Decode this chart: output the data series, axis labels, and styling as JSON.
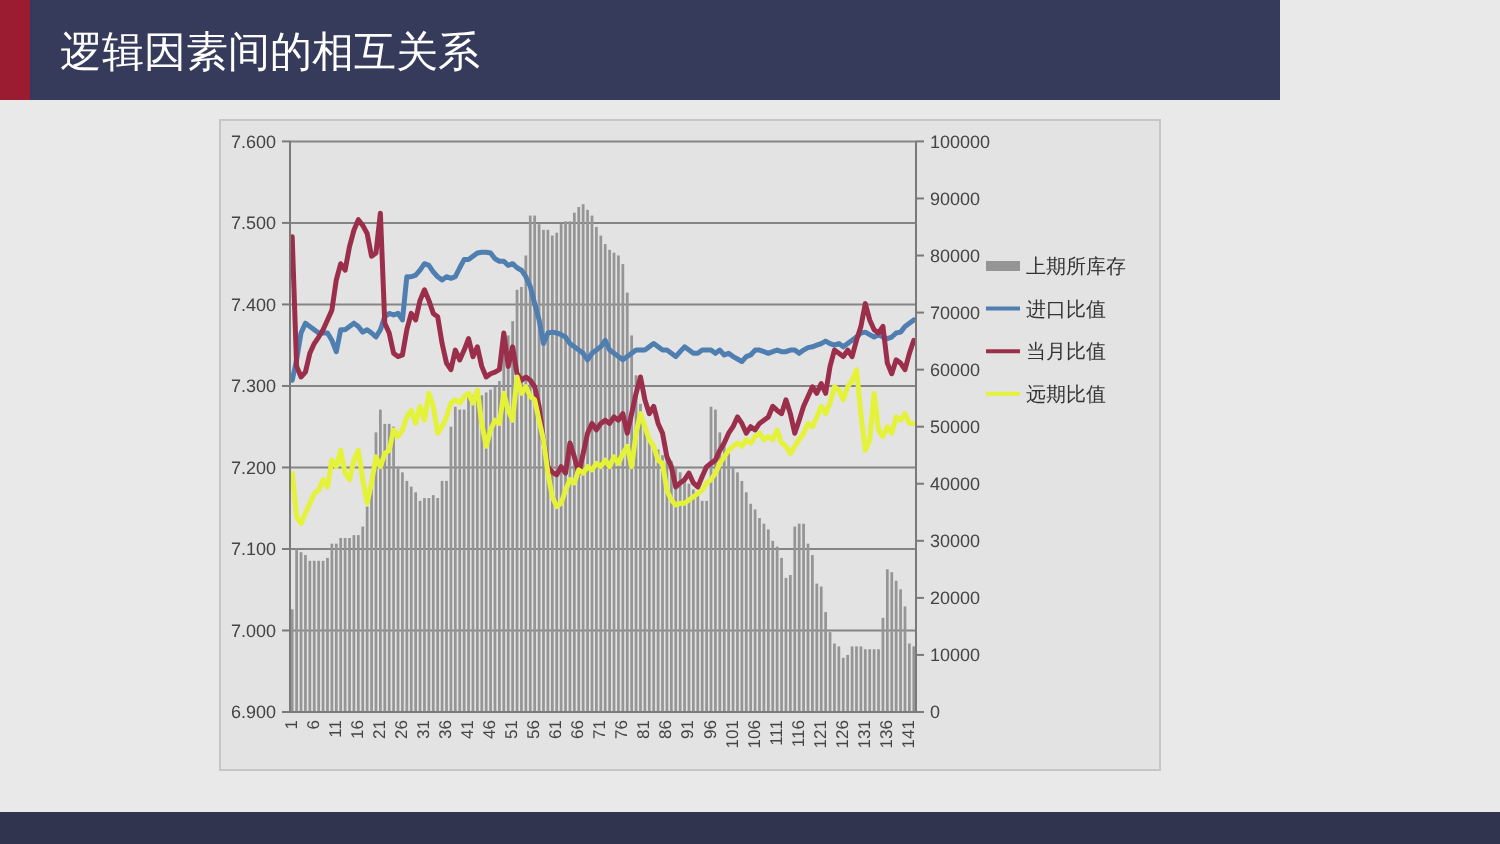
{
  "chart_data": {
    "type": "bar",
    "title": "逻辑因素间的相互关系",
    "categories": [
      "1",
      null,
      null,
      null,
      null,
      "6",
      null,
      null,
      null,
      null,
      "11",
      null,
      null,
      null,
      null,
      "16",
      null,
      null,
      null,
      null,
      "21",
      null,
      null,
      null,
      null,
      "26",
      null,
      null,
      null,
      null,
      "31",
      null,
      null,
      null,
      null,
      "36",
      null,
      null,
      null,
      null,
      "41",
      null,
      null,
      null,
      null,
      "46",
      null,
      null,
      null,
      null,
      "51",
      null,
      null,
      null,
      null,
      "56",
      null,
      null,
      null,
      null,
      "61",
      null,
      null,
      null,
      null,
      "66",
      null,
      null,
      null,
      null,
      "71",
      null,
      null,
      null,
      null,
      "76",
      null,
      null,
      null,
      null,
      "81",
      null,
      null,
      null,
      null,
      "86",
      null,
      null,
      null,
      null,
      "91",
      null,
      null,
      null,
      null,
      "96",
      null,
      null,
      null,
      null,
      "101",
      null,
      null,
      null,
      null,
      "106",
      null,
      null,
      null,
      null,
      "111",
      null,
      null,
      null,
      null,
      "116",
      null,
      null,
      null,
      null,
      "121",
      null,
      null,
      null,
      null,
      "126",
      null,
      null,
      null,
      null,
      "131",
      null,
      null,
      null,
      null,
      "136",
      null,
      null,
      null,
      null,
      "141",
      null
    ],
    "series": [
      {
        "name": "上期所库存",
        "axis": "y2",
        "color": "#959595",
        "values": [
          18000,
          28500,
          28000,
          27500,
          26500,
          26500,
          26500,
          26500,
          27000,
          29500,
          29500,
          30500,
          30500,
          30500,
          31000,
          31000,
          32500,
          36000,
          40000,
          49000,
          53000,
          50500,
          50500,
          50000,
          43000,
          42000,
          40500,
          39500,
          38500,
          37000,
          37500,
          37500,
          38000,
          37500,
          40500,
          40500,
          50000,
          53500,
          53000,
          53000,
          55500,
          55500,
          55000,
          55500,
          56000,
          56500,
          57000,
          58000,
          63000,
          66000,
          68500,
          74000,
          74500,
          80000,
          87000,
          87000,
          85500,
          84500,
          84500,
          83500,
          84000,
          85500,
          86000,
          86000,
          87500,
          88500,
          89000,
          88000,
          87000,
          85000,
          83500,
          82000,
          81000,
          80500,
          80000,
          78500,
          73500,
          66000,
          59000,
          54000,
          50000,
          48000,
          47000,
          46000,
          45000,
          44500,
          44000,
          43000,
          42000,
          41000,
          40000,
          39000,
          38000,
          37000,
          37000,
          53500,
          53000,
          49000,
          47500,
          45500,
          43000,
          42000,
          40500,
          38500,
          36500,
          35500,
          34000,
          33000,
          32000,
          30000,
          29000,
          27000,
          23500,
          24000,
          32500,
          33000,
          33000,
          29500,
          27500,
          22500,
          22000,
          17500,
          14000,
          12000,
          11500,
          9500,
          10000,
          11500,
          11500,
          11500,
          11000,
          11000,
          11000,
          11000,
          16500,
          25000,
          24500,
          23000,
          21500,
          18500,
          12000,
          11500
        ]
      },
      {
        "name": "进口比值",
        "type": "line",
        "color": "#4f7eb0",
        "values": [
          7.307,
          7.332,
          7.365,
          7.377,
          7.373,
          7.369,
          7.365,
          7.365,
          7.365,
          7.356,
          7.342,
          7.369,
          7.369,
          7.373,
          7.377,
          7.373,
          7.366,
          7.369,
          7.365,
          7.36,
          7.369,
          7.385,
          7.389,
          7.387,
          7.389,
          7.381,
          7.434,
          7.434,
          7.436,
          7.442,
          7.45,
          7.448,
          7.44,
          7.434,
          7.43,
          7.434,
          7.432,
          7.434,
          7.445,
          7.455,
          7.455,
          7.459,
          7.463,
          7.464,
          7.464,
          7.463,
          7.456,
          7.453,
          7.453,
          7.448,
          7.45,
          7.445,
          7.442,
          7.434,
          7.422,
          7.401,
          7.381,
          7.352,
          7.365,
          7.366,
          7.365,
          7.363,
          7.36,
          7.352,
          7.348,
          7.344,
          7.34,
          7.332,
          7.34,
          7.344,
          7.348,
          7.356,
          7.344,
          7.34,
          7.336,
          7.332,
          7.336,
          7.34,
          7.344,
          7.344,
          7.344,
          7.348,
          7.352,
          7.348,
          7.344,
          7.344,
          7.34,
          7.336,
          7.342,
          7.348,
          7.344,
          7.34,
          7.34,
          7.344,
          7.344,
          7.344,
          7.34,
          7.344,
          7.338,
          7.34,
          7.336,
          7.333,
          7.33,
          7.336,
          7.338,
          7.344,
          7.344,
          7.342,
          7.34,
          7.342,
          7.344,
          7.342,
          7.342,
          7.344,
          7.344,
          7.34,
          7.344,
          7.347,
          7.348,
          7.35,
          7.352,
          7.355,
          7.352,
          7.35,
          7.352,
          7.348,
          7.352,
          7.356,
          7.36,
          7.365,
          7.366,
          7.363,
          7.36,
          7.363,
          7.36,
          7.358,
          7.36,
          7.365,
          7.366,
          7.373,
          7.377,
          7.381
        ]
      },
      {
        "name": "当月比值",
        "type": "line",
        "color": "#9b2f4b",
        "values": [
          7.483,
          7.324,
          7.311,
          7.317,
          7.34,
          7.352,
          7.36,
          7.369,
          7.381,
          7.393,
          7.43,
          7.45,
          7.442,
          7.471,
          7.491,
          7.504,
          7.497,
          7.487,
          7.459,
          7.463,
          7.512,
          7.377,
          7.365,
          7.34,
          7.336,
          7.338,
          7.369,
          7.389,
          7.381,
          7.405,
          7.418,
          7.405,
          7.389,
          7.385,
          7.352,
          7.328,
          7.32,
          7.344,
          7.332,
          7.344,
          7.358,
          7.336,
          7.348,
          7.324,
          7.311,
          7.315,
          7.317,
          7.32,
          7.365,
          7.324,
          7.348,
          7.315,
          7.307,
          7.311,
          7.307,
          7.299,
          7.275,
          7.234,
          7.201,
          7.194,
          7.191,
          7.201,
          7.193,
          7.23,
          7.213,
          7.193,
          7.217,
          7.242,
          7.254,
          7.246,
          7.254,
          7.258,
          7.254,
          7.262,
          7.258,
          7.266,
          7.242,
          7.266,
          7.291,
          7.311,
          7.283,
          7.266,
          7.275,
          7.254,
          7.242,
          7.213,
          7.201,
          7.176,
          7.181,
          7.185,
          7.193,
          7.181,
          7.176,
          7.189,
          7.201,
          7.205,
          7.209,
          7.221,
          7.23,
          7.242,
          7.25,
          7.262,
          7.254,
          7.242,
          7.25,
          7.246,
          7.254,
          7.258,
          7.262,
          7.275,
          7.27,
          7.266,
          7.283,
          7.266,
          7.242,
          7.258,
          7.275,
          7.287,
          7.299,
          7.291,
          7.303,
          7.291,
          7.324,
          7.344,
          7.34,
          7.336,
          7.344,
          7.336,
          7.356,
          7.373,
          7.401,
          7.381,
          7.369,
          7.365,
          7.373,
          7.328,
          7.315,
          7.332,
          7.328,
          7.32,
          7.34,
          7.356
        ]
      },
      {
        "name": "远期比值",
        "type": "line",
        "color": "#e4f23a",
        "values": [
          7.193,
          7.14,
          7.131,
          7.144,
          7.156,
          7.168,
          7.172,
          7.185,
          7.176,
          7.209,
          7.201,
          7.221,
          7.193,
          7.185,
          7.209,
          7.221,
          7.185,
          7.156,
          7.181,
          7.213,
          7.201,
          7.217,
          7.221,
          7.246,
          7.238,
          7.246,
          7.262,
          7.27,
          7.254,
          7.275,
          7.258,
          7.291,
          7.275,
          7.242,
          7.25,
          7.262,
          7.279,
          7.283,
          7.279,
          7.287,
          7.291,
          7.279,
          7.295,
          7.254,
          7.226,
          7.246,
          7.258,
          7.254,
          7.291,
          7.27,
          7.258,
          7.311,
          7.291,
          7.299,
          7.287,
          7.283,
          7.258,
          7.234,
          7.193,
          7.164,
          7.152,
          7.156,
          7.172,
          7.185,
          7.181,
          7.197,
          7.193,
          7.201,
          7.197,
          7.205,
          7.201,
          7.209,
          7.201,
          7.213,
          7.205,
          7.217,
          7.226,
          7.201,
          7.242,
          7.266,
          7.25,
          7.234,
          7.226,
          7.209,
          7.205,
          7.172,
          7.16,
          7.154,
          7.156,
          7.156,
          7.16,
          7.164,
          7.168,
          7.172,
          7.181,
          7.185,
          7.193,
          7.205,
          7.213,
          7.221,
          7.226,
          7.23,
          7.226,
          7.234,
          7.23,
          7.238,
          7.242,
          7.234,
          7.238,
          7.234,
          7.246,
          7.23,
          7.226,
          7.217,
          7.226,
          7.234,
          7.242,
          7.254,
          7.25,
          7.262,
          7.275,
          7.266,
          7.279,
          7.299,
          7.295,
          7.283,
          7.299,
          7.307,
          7.32,
          7.266,
          7.221,
          7.234,
          7.291,
          7.246,
          7.238,
          7.25,
          7.242,
          7.262,
          7.258,
          7.266,
          7.254,
          7.254
        ]
      }
    ],
    "ylim": [
      6.9,
      7.6
    ],
    "yticks": [
      {
        "value": 6.9,
        "label": "6.900"
      },
      {
        "value": 7.0,
        "label": "7.000"
      },
      {
        "value": 7.1,
        "label": "7.100"
      },
      {
        "value": 7.2,
        "label": "7.200"
      },
      {
        "value": 7.3,
        "label": "7.300"
      },
      {
        "value": 7.4,
        "label": "7.400"
      },
      {
        "value": 7.5,
        "label": "7.500"
      },
      {
        "value": 7.6,
        "label": "7.600"
      }
    ],
    "y2lim": [
      0,
      100000
    ],
    "y2ticks": [
      0,
      10000,
      20000,
      30000,
      40000,
      50000,
      60000,
      70000,
      80000,
      90000,
      100000
    ],
    "grid": "y",
    "legend": "right"
  }
}
